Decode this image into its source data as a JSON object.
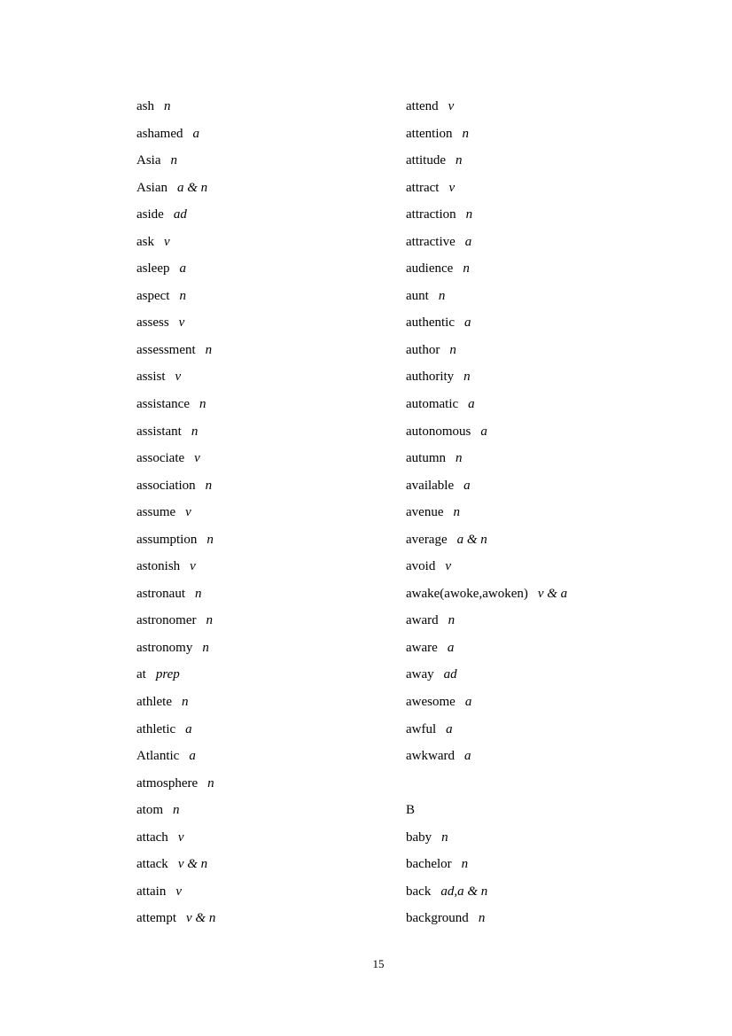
{
  "page": {
    "number": "15"
  },
  "word_list": {
    "left_column": [
      {
        "word": "ash",
        "pos": "n"
      },
      {
        "word": "ashamed",
        "pos": "a"
      },
      {
        "word": "Asia",
        "pos": "n"
      },
      {
        "word": "Asian",
        "pos": "a & n"
      },
      {
        "word": "aside",
        "pos": "ad"
      },
      {
        "word": "ask",
        "pos": "v"
      },
      {
        "word": "asleep",
        "pos": "a"
      },
      {
        "word": "aspect",
        "pos": "n"
      },
      {
        "word": "assess",
        "pos": "v"
      },
      {
        "word": "assessment",
        "pos": "n"
      },
      {
        "word": "assist",
        "pos": "v"
      },
      {
        "word": "assistance",
        "pos": "n"
      },
      {
        "word": "assistant",
        "pos": "n"
      },
      {
        "word": "associate",
        "pos": "v"
      },
      {
        "word": "association",
        "pos": "n"
      },
      {
        "word": "assume",
        "pos": "v"
      },
      {
        "word": "assumption",
        "pos": "n"
      },
      {
        "word": "astonish",
        "pos": "v"
      },
      {
        "word": "astronaut",
        "pos": "n"
      },
      {
        "word": "astronomer",
        "pos": "n"
      },
      {
        "word": "astronomy",
        "pos": "n"
      },
      {
        "word": "at",
        "pos": "prep"
      },
      {
        "word": "athlete",
        "pos": "n"
      },
      {
        "word": "athletic",
        "pos": "a"
      },
      {
        "word": "Atlantic",
        "pos": "a"
      },
      {
        "word": "atmosphere",
        "pos": "n"
      },
      {
        "word": "atom",
        "pos": "n"
      },
      {
        "word": "attach",
        "pos": "v"
      },
      {
        "word": "attack",
        "pos": "v & n"
      },
      {
        "word": "attain",
        "pos": "v"
      },
      {
        "word": "attempt",
        "pos": "v & n"
      }
    ],
    "right_column": [
      {
        "word": "attend",
        "pos": "v"
      },
      {
        "word": "attention",
        "pos": "n"
      },
      {
        "word": "attitude",
        "pos": "n"
      },
      {
        "word": "attract",
        "pos": "v"
      },
      {
        "word": "attraction",
        "pos": "n"
      },
      {
        "word": "attractive",
        "pos": "a"
      },
      {
        "word": "audience",
        "pos": "n"
      },
      {
        "word": "aunt",
        "pos": "n"
      },
      {
        "word": "authentic",
        "pos": "a"
      },
      {
        "word": "author",
        "pos": "n"
      },
      {
        "word": "authority",
        "pos": "n"
      },
      {
        "word": "automatic",
        "pos": "a"
      },
      {
        "word": "autonomous",
        "pos": "a"
      },
      {
        "word": "autumn",
        "pos": "n"
      },
      {
        "word": "available",
        "pos": "a"
      },
      {
        "word": "avenue",
        "pos": "n"
      },
      {
        "word": "average",
        "pos": "a & n"
      },
      {
        "word": "avoid",
        "pos": "v"
      },
      {
        "word": "awake(awoke,awoken)",
        "pos": "v & a"
      },
      {
        "word": "award",
        "pos": "n"
      },
      {
        "word": "aware",
        "pos": "a"
      },
      {
        "word": "away",
        "pos": "ad"
      },
      {
        "word": "awesome",
        "pos": "a"
      },
      {
        "word": "awful",
        "pos": "a"
      },
      {
        "word": "awkward",
        "pos": "a"
      },
      {
        "type": "blank"
      },
      {
        "type": "heading",
        "word": "B"
      },
      {
        "word": "baby",
        "pos": "n"
      },
      {
        "word": "bachelor",
        "pos": "n"
      },
      {
        "word": "back",
        "pos": "ad,a & n"
      },
      {
        "word": "background",
        "pos": "n"
      }
    ]
  }
}
